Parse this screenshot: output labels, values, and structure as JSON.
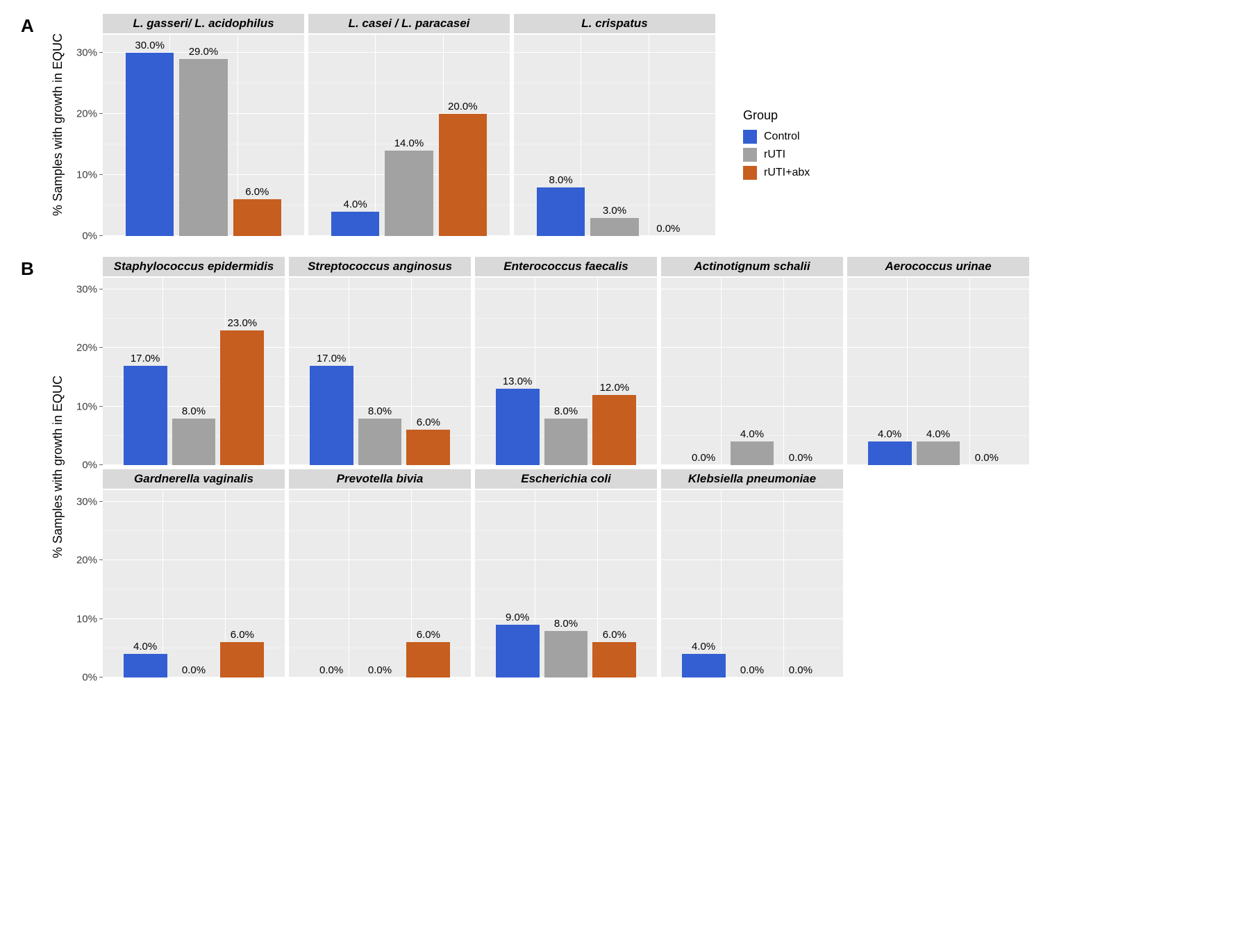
{
  "colors": {
    "control": "#345fd3",
    "ruti": "#a2a2a2",
    "ruti_abx": "#c65e1f",
    "panel_bg": "#ebebeb",
    "strip_bg": "#d9d9d9",
    "grid": "#ffffff"
  },
  "legend": {
    "title": "Group",
    "items": [
      {
        "label": "Control",
        "color": "#345fd3"
      },
      {
        "label": "rUTI",
        "color": "#a2a2a2"
      },
      {
        "label": "rUTI+abx",
        "color": "#c65e1f"
      }
    ]
  },
  "sectionA": {
    "letter": "A",
    "ylabel": "% Samples with growth in EQUC",
    "ymax": 33,
    "yticks": [
      0,
      10,
      20,
      30
    ],
    "facet_width": 290,
    "facet_height": 290,
    "facets": [
      {
        "title": "L. gasseri/ L. acidophilus",
        "values": [
          30.0,
          29.0,
          6.0
        ]
      },
      {
        "title": "L. casei / L. paracasei",
        "values": [
          4.0,
          14.0,
          20.0
        ]
      },
      {
        "title": "L. crispatus",
        "values": [
          8.0,
          3.0,
          0.0
        ]
      }
    ]
  },
  "sectionB": {
    "letter": "B",
    "ylabel": "% Samples with growth in EQUC",
    "ymax": 32,
    "yticks": [
      0,
      10,
      20,
      30
    ],
    "facet_width": 262,
    "facet_height": 270,
    "rows": [
      [
        {
          "title": "Staphylococcus epidermidis",
          "values": [
            17.0,
            8.0,
            23.0
          ]
        },
        {
          "title": "Streptococcus anginosus",
          "values": [
            17.0,
            8.0,
            6.0
          ]
        },
        {
          "title": "Enterococcus faecalis",
          "values": [
            13.0,
            8.0,
            12.0
          ]
        },
        {
          "title": "Actinotignum schalii",
          "values": [
            0.0,
            4.0,
            0.0
          ]
        },
        {
          "title": "Aerococcus urinae",
          "values": [
            4.0,
            4.0,
            0.0
          ]
        }
      ],
      [
        {
          "title": "Gardnerella vaginalis",
          "values": [
            4.0,
            0.0,
            6.0
          ]
        },
        {
          "title": "Prevotella bivia",
          "values": [
            0.0,
            0.0,
            6.0
          ]
        },
        {
          "title": "Escherichia coli",
          "values": [
            9.0,
            8.0,
            6.0
          ]
        },
        {
          "title": "Klebsiella pneumoniae",
          "values": [
            4.0,
            0.0,
            0.0
          ]
        }
      ]
    ]
  }
}
